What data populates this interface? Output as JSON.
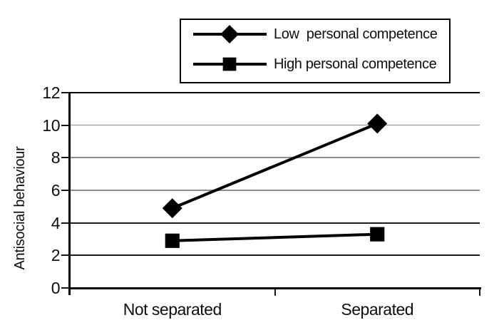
{
  "colors": {
    "ink": "#000000",
    "grid_light": "#8c8c8c",
    "grid_dark": "#1c1c1c",
    "background": "#ffffff"
  },
  "chart_data": {
    "type": "line",
    "title": "",
    "xlabel": "",
    "ylabel": "Antisocial behaviour",
    "categories": [
      "Not separated",
      "Separated"
    ],
    "series": [
      {
        "name": "Low  personal competence",
        "marker": "diamond",
        "color": "#000000",
        "values": [
          4.9,
          10.1
        ]
      },
      {
        "name": "High personal competence",
        "marker": "square",
        "color": "#000000",
        "values": [
          2.9,
          3.3
        ]
      }
    ],
    "ylim": [
      0,
      12
    ],
    "y_ticks": [
      0,
      2,
      4,
      6,
      8,
      10,
      12
    ],
    "y_tick_labels": [
      "0",
      "2",
      "4",
      "6",
      "8",
      "10",
      "12"
    ],
    "grid": "horizontal",
    "legend_position": "top-center, boxed",
    "plot_background": "#ffffff"
  }
}
